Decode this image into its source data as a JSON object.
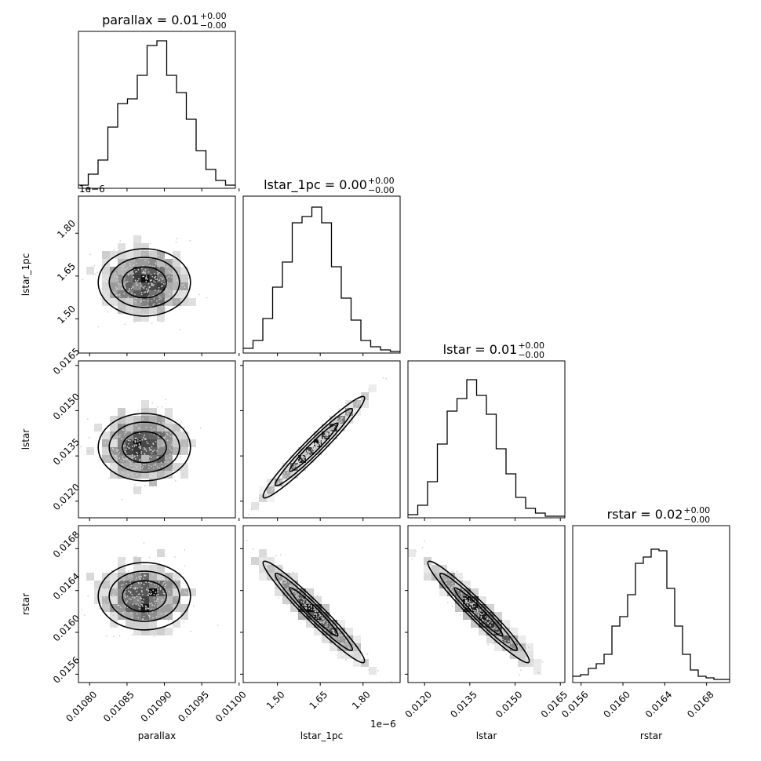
{
  "chart_data": {
    "type": "corner",
    "parameters": [
      "parallax",
      "lstar_1pc",
      "lstar",
      "rstar"
    ],
    "titles": [
      {
        "param": "parallax",
        "main": "parallax = 0.01",
        "sup": "+0.00",
        "sub": "−0.00"
      },
      {
        "param": "lstar_1pc",
        "main": "lstar_1pc = 0.00",
        "sup": "+0.00",
        "sub": "−0.00"
      },
      {
        "param": "lstar",
        "main": "lstar = 0.01",
        "sup": "+0.00",
        "sub": "−0.00"
      },
      {
        "param": "rstar",
        "main": "rstar = 0.02",
        "sup": "+0.00",
        "sub": "−0.00"
      }
    ],
    "ranges": [
      [
        0.010785,
        0.010995
      ],
      [
        1.38e-06,
        1.93e-06
      ],
      [
        0.01145,
        0.01665
      ],
      [
        0.01552,
        0.01702
      ]
    ],
    "ticks": [
      {
        "values": [
          0.0108,
          0.01085,
          0.0109,
          0.01095,
          0.011
        ],
        "labels": [
          "0.01080",
          "0.01085",
          "0.01090",
          "0.01095",
          "0.01100"
        ]
      },
      {
        "values": [
          1.5e-06,
          1.65e-06,
          1.8e-06
        ],
        "labels": [
          "1.50",
          "1.65",
          "1.80"
        ]
      },
      {
        "values": [
          0.012,
          0.0135,
          0.015,
          0.0165
        ],
        "labels": [
          "0.0120",
          "0.0135",
          "0.0150",
          "0.0165"
        ]
      },
      {
        "values": [
          0.0156,
          0.016,
          0.0164,
          0.0168
        ],
        "labels": [
          "0.0156",
          "0.0160",
          "0.0164",
          "0.0168"
        ]
      }
    ],
    "offset_label": "1e−6",
    "histograms": [
      [
        0.02,
        0.09,
        0.18,
        0.39,
        0.54,
        0.57,
        0.72,
        0.91,
        0.94,
        0.72,
        0.61,
        0.44,
        0.24,
        0.12,
        0.05,
        0.02
      ],
      [
        0.03,
        0.08,
        0.22,
        0.42,
        0.58,
        0.83,
        0.87,
        0.93,
        0.83,
        0.55,
        0.35,
        0.21,
        0.08,
        0.04,
        0.02,
        0.01
      ],
      [
        0.02,
        0.08,
        0.23,
        0.47,
        0.68,
        0.76,
        0.88,
        0.78,
        0.66,
        0.44,
        0.28,
        0.13,
        0.06,
        0.03,
        0.01,
        0.01
      ],
      [
        0.04,
        0.05,
        0.09,
        0.12,
        0.18,
        0.36,
        0.42,
        0.56,
        0.76,
        0.8,
        0.85,
        0.84,
        0.6,
        0.36,
        0.18,
        0.08,
        0.04,
        0.03,
        0.02,
        0.02
      ]
    ],
    "pair_correlations": {
      "1_0": 0.0,
      "2_0": 0.0,
      "2_1": 0.995,
      "3_0": 0.0,
      "3_1": -0.95,
      "3_2": -0.95
    }
  }
}
